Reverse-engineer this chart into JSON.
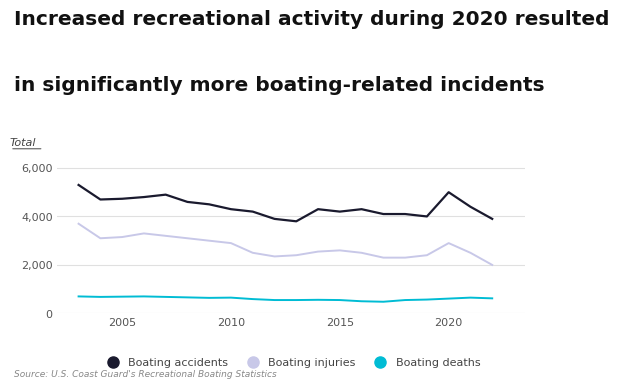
{
  "title_line1": "Increased recreational activity during 2020 resulted",
  "title_line2": "in significantly more boating-related incidents",
  "ylabel": "Total",
  "source": "Source: U.S. Coast Guard's Recreational Boating Statistics",
  "years": [
    2003,
    2004,
    2005,
    2006,
    2007,
    2008,
    2009,
    2010,
    2011,
    2012,
    2013,
    2014,
    2015,
    2016,
    2017,
    2018,
    2019,
    2020,
    2021,
    2022
  ],
  "accidents": [
    5300,
    4700,
    4730,
    4800,
    4900,
    4600,
    4500,
    4300,
    4200,
    3900,
    3800,
    4300,
    4200,
    4300,
    4100,
    4100,
    4000,
    5000,
    4400,
    3900
  ],
  "injuries": [
    3700,
    3100,
    3150,
    3300,
    3200,
    3100,
    3000,
    2900,
    2500,
    2350,
    2400,
    2550,
    2600,
    2500,
    2300,
    2300,
    2400,
    2900,
    2500,
    2000
  ],
  "deaths": [
    700,
    680,
    690,
    700,
    680,
    660,
    640,
    650,
    590,
    550,
    550,
    560,
    550,
    500,
    480,
    550,
    570,
    610,
    650,
    620
  ],
  "accidents_color": "#1a1a2e",
  "injuries_color": "#c8c8e8",
  "deaths_color": "#00bcd4",
  "background_color": "#ffffff",
  "grid_color": "#e0e0e0",
  "ylim": [
    0,
    6500
  ],
  "yticks": [
    0,
    2000,
    4000,
    6000
  ],
  "xtick_years": [
    2005,
    2010,
    2015,
    2020
  ],
  "legend_labels": [
    "Boating accidents",
    "Boating injuries",
    "Boating deaths"
  ],
  "title_fontsize": 14.5,
  "tick_fontsize": 8,
  "legend_fontsize": 8,
  "source_fontsize": 6.5
}
